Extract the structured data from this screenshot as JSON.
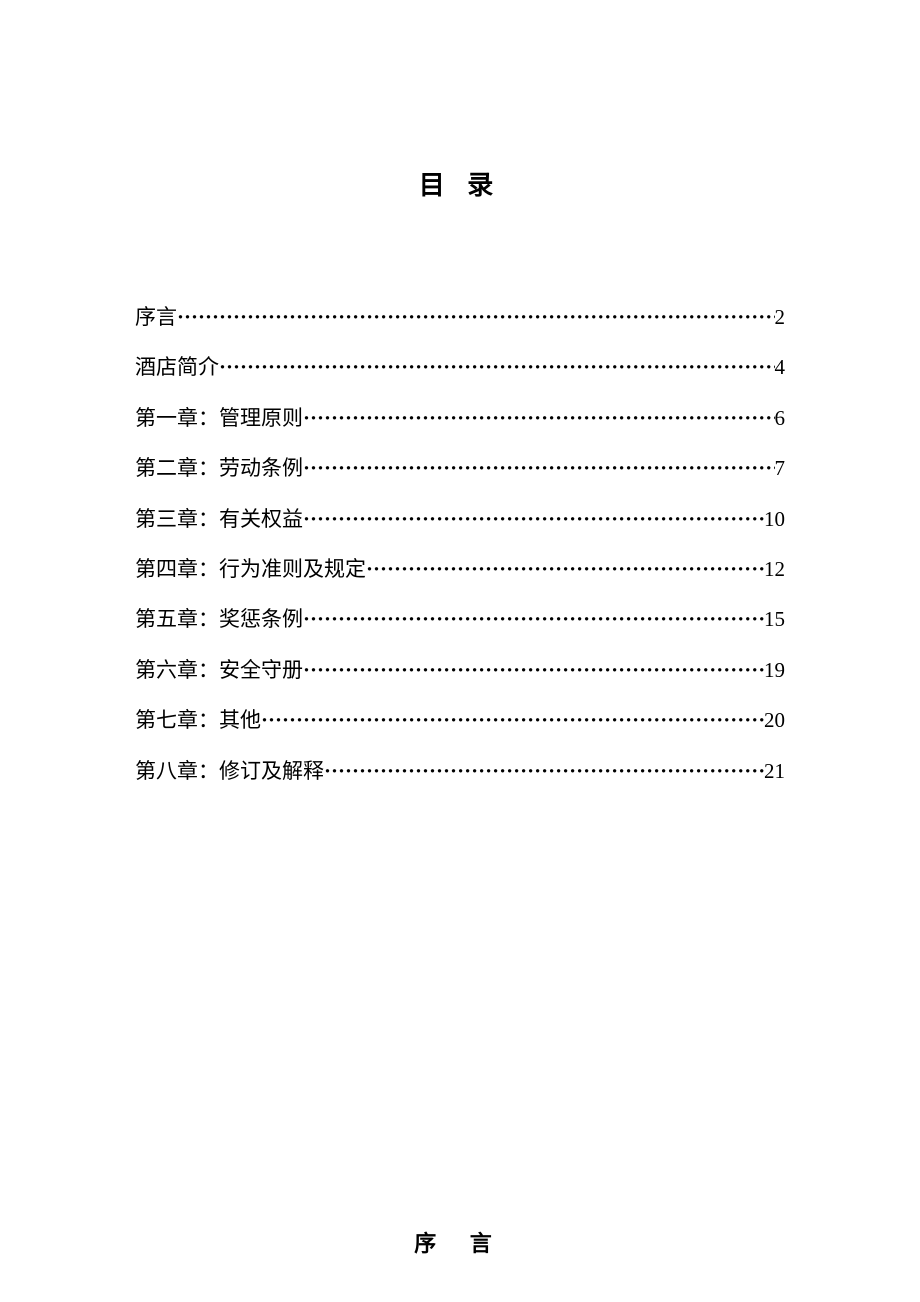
{
  "document": {
    "toc_title": "目 录",
    "section_title": "序  言",
    "background_color": "#ffffff",
    "text_color": "#000000",
    "title_fontsize": 26,
    "entry_fontsize": 21,
    "font_family": "SimSun",
    "entries": [
      {
        "label": "序言",
        "page": "2"
      },
      {
        "label": "酒店简介",
        "page": "4"
      },
      {
        "label": "第一章：管理原则",
        "page": "6"
      },
      {
        "label": "第二章：劳动条例",
        "page": "7"
      },
      {
        "label": "第三章：有关权益",
        "page": "10"
      },
      {
        "label": "第四章：行为准则及规定",
        "page": "12"
      },
      {
        "label": "第五章：奖惩条例",
        "page": "15"
      },
      {
        "label": "第六章：安全守册",
        "page": "19"
      },
      {
        "label": "第七章：其他",
        "page": "20"
      },
      {
        "label": "第八章：修订及解释",
        "page": "21"
      }
    ]
  }
}
